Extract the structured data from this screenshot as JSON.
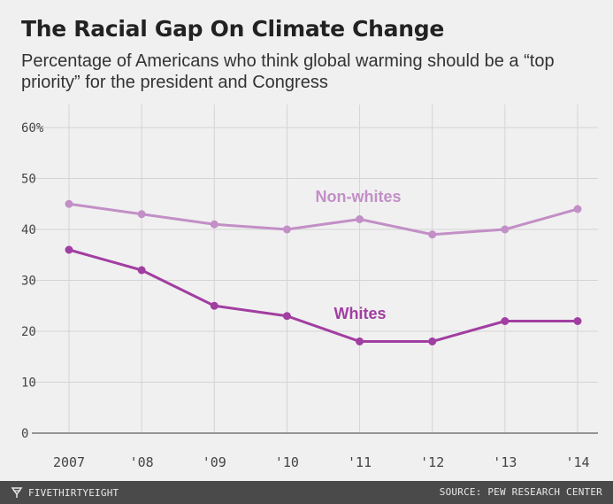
{
  "header": {
    "title": "The Racial Gap On Climate Change",
    "subtitle": "Percentage of Americans who think global warming should be a “top priority” for the president and Congress"
  },
  "footer": {
    "brand": "FIVETHIRTYEIGHT",
    "brand_icon": "fivethirtyeight-logo-icon",
    "source": "SOURCE: PEW RESEARCH CENTER"
  },
  "colors": {
    "background": "#f0f0f0",
    "grid": "#d4d4d4",
    "baseline": "#777777",
    "nonwhites": "#c28fc6",
    "whites": "#a13ea1",
    "footer": "#4a4a4a"
  },
  "chart_data": {
    "type": "line",
    "title": "The Racial Gap On Climate Change",
    "subtitle": "Percentage of Americans who think global warming should be a “top priority” for the president and Congress",
    "categories": [
      "2007",
      "'08",
      "'09",
      "'10",
      "'11",
      "'12",
      "'13",
      "'14"
    ],
    "x": [
      2007,
      2008,
      2009,
      2010,
      2011,
      2012,
      2013,
      2014
    ],
    "ylim": [
      0,
      60
    ],
    "yticks": [
      0,
      10,
      20,
      30,
      40,
      50,
      60
    ],
    "ytick_labels": [
      "0",
      "10",
      "20",
      "30",
      "40",
      "50",
      "60%"
    ],
    "grid": true,
    "legend": "direct labels on lines",
    "series": [
      {
        "name": "Non-whites",
        "values": [
          45,
          43,
          41,
          40,
          42,
          39,
          40,
          44
        ]
      },
      {
        "name": "Whites",
        "values": [
          36,
          32,
          25,
          23,
          18,
          18,
          22,
          22
        ]
      }
    ]
  }
}
